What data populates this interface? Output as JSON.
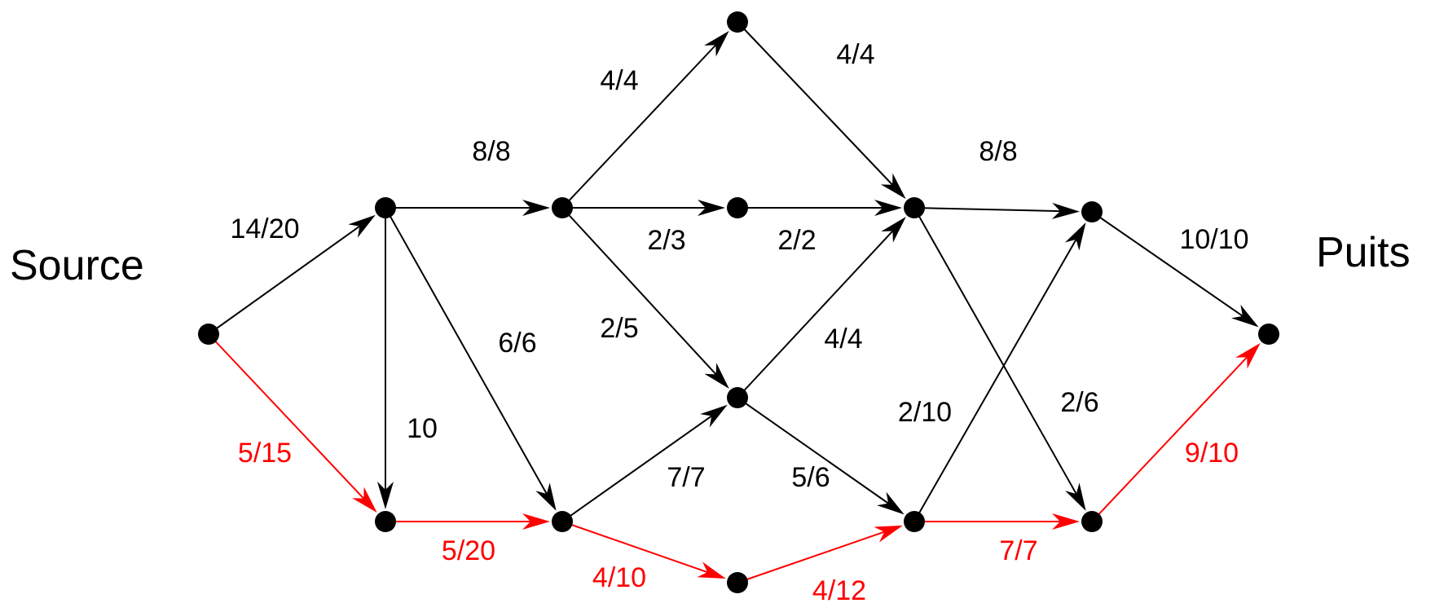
{
  "labels": {
    "source": "Source",
    "sink": "Puits"
  },
  "colors": {
    "normal": "#000000",
    "path": "#ff0000",
    "node": "#000000"
  },
  "nodes": [
    "s",
    "a",
    "d",
    "b",
    "e",
    "c",
    "m",
    "f",
    "g",
    "h",
    "k",
    "i",
    "t"
  ],
  "edges": [
    {
      "id": "s-a",
      "from": "s",
      "to": "a",
      "label": "14/20",
      "path": false
    },
    {
      "id": "s-d",
      "from": "s",
      "to": "d",
      "label": "5/15",
      "path": true
    },
    {
      "id": "a-b",
      "from": "a",
      "to": "b",
      "label": "8/8",
      "path": false
    },
    {
      "id": "a-d",
      "from": "a",
      "to": "d",
      "label": "10",
      "path": false
    },
    {
      "id": "a-e",
      "from": "a",
      "to": "e",
      "label": "6/6",
      "path": false
    },
    {
      "id": "d-e",
      "from": "d",
      "to": "e",
      "label": "5/20",
      "path": true
    },
    {
      "id": "b-c",
      "from": "b",
      "to": "c",
      "label": "4/4",
      "path": false
    },
    {
      "id": "b-m",
      "from": "b",
      "to": "m",
      "label": "2/3",
      "path": false
    },
    {
      "id": "b-f",
      "from": "b",
      "to": "f",
      "label": "2/5",
      "path": false
    },
    {
      "id": "e-f",
      "from": "e",
      "to": "f",
      "label": "7/7",
      "path": false
    },
    {
      "id": "e-g",
      "from": "e",
      "to": "g",
      "label": "4/10",
      "path": true
    },
    {
      "id": "c-h",
      "from": "c",
      "to": "h",
      "label": "4/4",
      "path": false
    },
    {
      "id": "m-h",
      "from": "m",
      "to": "h",
      "label": "2/2",
      "path": false
    },
    {
      "id": "f-h",
      "from": "f",
      "to": "h",
      "label": "4/4",
      "path": false
    },
    {
      "id": "f-k",
      "from": "f",
      "to": "k",
      "label": "5/6",
      "path": false
    },
    {
      "id": "g-k",
      "from": "g",
      "to": "k",
      "label": "4/12",
      "path": true
    },
    {
      "id": "h-i",
      "from": "h",
      "to": "i",
      "label": "8/8",
      "path": false
    },
    {
      "id": "h-l",
      "from": "h",
      "to": "l",
      "label": "2/6",
      "path": false
    },
    {
      "id": "k-i",
      "from": "k",
      "to": "i",
      "label": "2/10",
      "path": false
    },
    {
      "id": "k-l",
      "from": "k",
      "to": "l",
      "label": "7/7",
      "path": true
    },
    {
      "id": "i-t",
      "from": "i",
      "to": "t",
      "label": "10/10",
      "path": false
    },
    {
      "id": "l-t",
      "from": "l",
      "to": "t",
      "label": "9/10",
      "path": true
    }
  ]
}
